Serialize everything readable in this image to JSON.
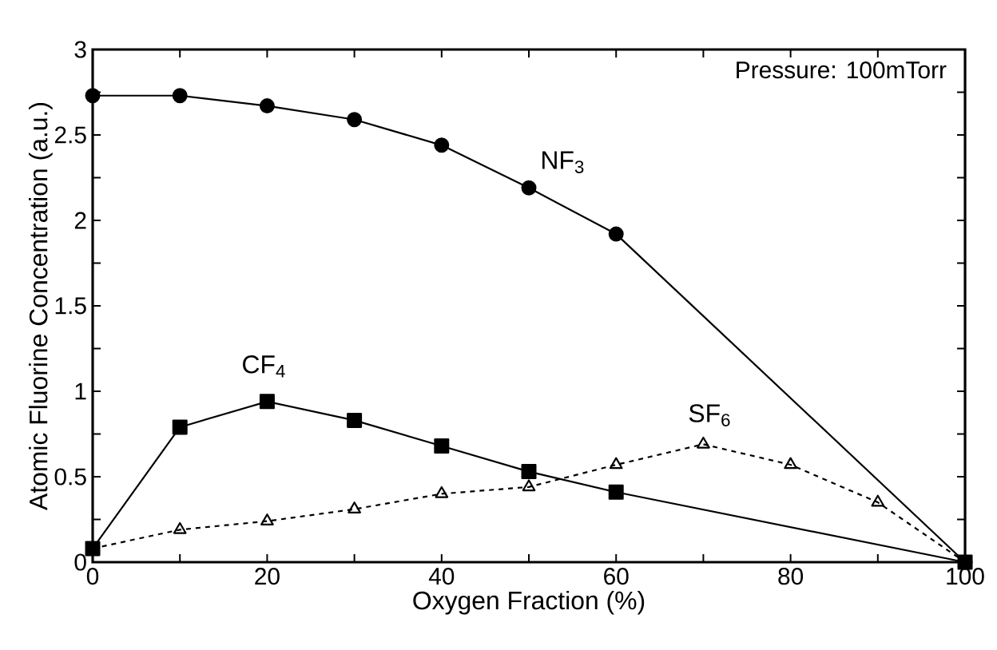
{
  "chart_data": {
    "type": "line",
    "xlabel": "Oxygen Fraction (%)",
    "ylabel": "Atomic Fluorine Concentration (a.u.)",
    "annotations": [
      "Pressure: 100mTorr"
    ],
    "series": [
      {
        "name": "NF$_{3}$",
        "color": "#000000",
        "marker": "circle",
        "line_style": "solid",
        "x": [
          0,
          10,
          20,
          30,
          40,
          50,
          60,
          100
        ],
        "values": [
          2.73,
          2.73,
          2.67,
          2.59,
          2.44,
          2.19,
          1.92,
          0
        ]
      },
      {
        "name": "CF$_{4}$",
        "color": "#000000",
        "marker": "square",
        "line_style": "solid",
        "x": [
          0,
          10,
          20,
          30,
          40,
          50,
          60,
          100
        ],
        "values": [
          0.08,
          0.79,
          0.94,
          0.83,
          0.68,
          0.53,
          0.41,
          0
        ]
      },
      {
        "name": "SF$_{6}$",
        "color": "#000000",
        "marker": "triangle",
        "line_style": "dashed",
        "x": [
          0,
          10,
          20,
          30,
          40,
          50,
          60,
          70,
          80,
          90,
          100
        ],
        "values": [
          0.08,
          0.19,
          0.24,
          0.31,
          0.4,
          0.44,
          0.57,
          0.69,
          0.57,
          0.35,
          0
        ]
      }
    ],
    "xlim": [
      0,
      100
    ],
    "ylim": [
      0,
      3
    ],
    "xticks": [
      0,
      {
        "value": 10,
        "label": null
      },
      20,
      {
        "value": 30,
        "label": null
      },
      40,
      {
        "value": 50,
        "label": null
      },
      60,
      {
        "value": 70,
        "label": null
      },
      80,
      {
        "value": 90,
        "label": null
      },
      100
    ],
    "yticks": [
      0,
      {
        "value": 0.25,
        "label": null
      },
      0.5,
      {
        "value": 0.75,
        "label": null
      },
      1,
      {
        "value": 1.25,
        "label": null
      },
      1.5,
      {
        "value": 1.75,
        "label": null
      },
      2,
      {
        "value": 2.25,
        "label": null
      },
      2.5,
      {
        "value": 2.75,
        "label": null
      },
      3
    ],
    "grid": false,
    "legend": false
  }
}
